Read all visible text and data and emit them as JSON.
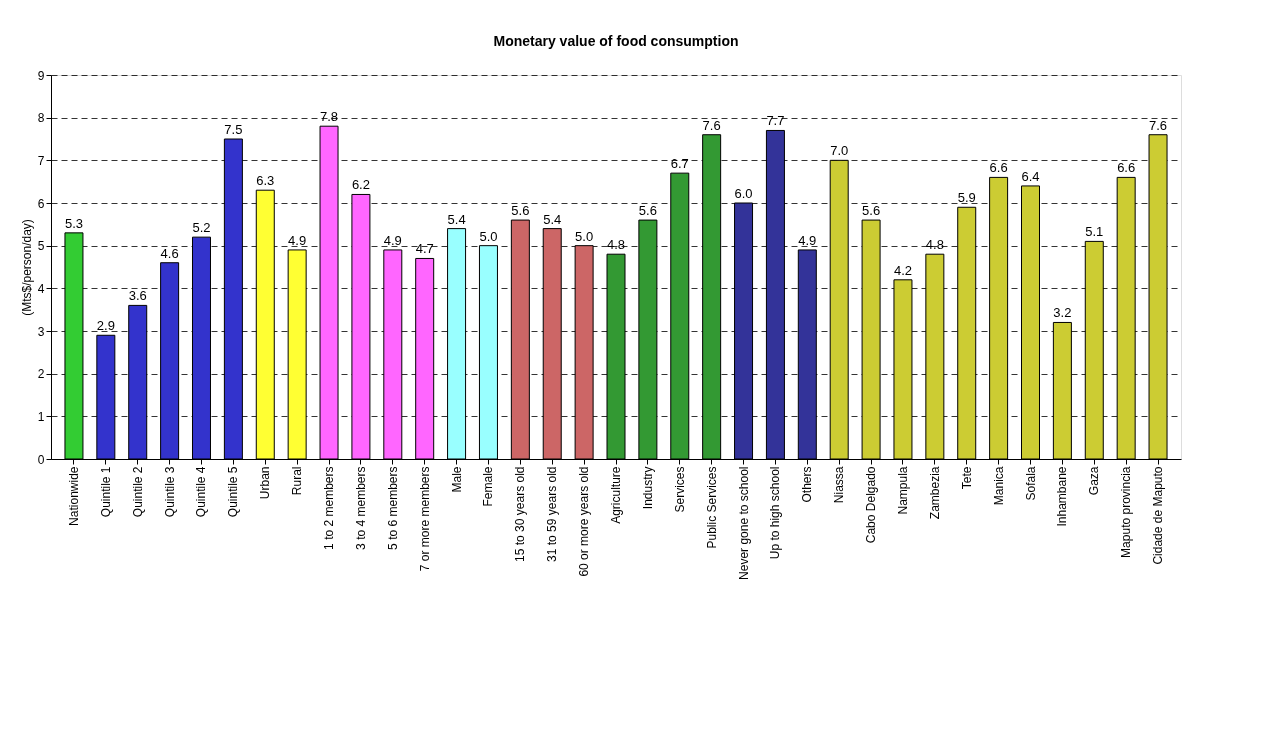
{
  "chart_data": {
    "type": "bar",
    "title": "Monetary value of food consumption",
    "ylabel": "(Mts$/person/day)",
    "categories": [
      "Nationwide",
      "Quintile 1",
      "Quintile 2",
      "Quintile 3",
      "Quintile 4",
      "Quintile 5",
      "Urban",
      "Rural",
      "1 to 2 members",
      "3 to 4 members",
      "5 to 6 members",
      "7 or more members",
      "Male",
      "Female",
      "15 to 30 years old",
      "31 to 59 years old",
      "60 or more years old",
      "Agriculture",
      "Industry",
      "Services",
      "Public Services",
      "Never gone to school",
      "Up to high school",
      "Others",
      "Niassa",
      "Cabo Delgado",
      "Nampula",
      "Zambezia",
      "Tete",
      "Manica",
      "Sofala",
      "Inhambane",
      "Gaza",
      "Maputo provincia",
      "Cidade de Maputo"
    ],
    "values": [
      5.3,
      2.9,
      3.6,
      4.6,
      5.2,
      7.5,
      6.3,
      4.9,
      7.8,
      6.2,
      4.9,
      4.7,
      5.4,
      5.0,
      5.6,
      5.4,
      5.0,
      4.8,
      5.6,
      6.7,
      7.6,
      6.0,
      7.7,
      4.9,
      7.0,
      5.6,
      4.2,
      4.8,
      5.9,
      6.6,
      6.4,
      3.2,
      5.1,
      6.6,
      7.6
    ],
    "value_labels": [
      "5.3",
      "2.9",
      "3.6",
      "4.6",
      "5.2",
      "7.5",
      "6.3",
      "4.9",
      "7.8",
      "6.2",
      "4.9",
      "4.7",
      "5.4",
      "5.0",
      "5.6",
      "5.4",
      "5.0",
      "4.8",
      "5.6",
      "6.7",
      "7.6",
      "6.0",
      "7.7",
      "4.9",
      "7.0",
      "5.6",
      "4.2",
      "4.8",
      "5.9",
      "6.6",
      "6.4",
      "3.2",
      "5.1",
      "6.6",
      "7.6"
    ],
    "colors": [
      "#33cc33",
      "#3333cc",
      "#3333cc",
      "#3333cc",
      "#3333cc",
      "#3333cc",
      "#ffff33",
      "#ffff33",
      "#ff66ff",
      "#ff66ff",
      "#ff66ff",
      "#ff66ff",
      "#99ffff",
      "#99ffff",
      "#cc6666",
      "#cc6666",
      "#cc6666",
      "#339933",
      "#339933",
      "#339933",
      "#339933",
      "#333399",
      "#333399",
      "#333399",
      "#cccc33",
      "#cccc33",
      "#cccc33",
      "#cccc33",
      "#cccc33",
      "#cccc33",
      "#cccc33",
      "#cccc33",
      "#cccc33",
      "#cccc33",
      "#cccc33"
    ],
    "ylim": [
      0,
      9
    ],
    "yticks": [
      0,
      1,
      2,
      3,
      4,
      5,
      6,
      7,
      8,
      9
    ],
    "grid": "y"
  }
}
